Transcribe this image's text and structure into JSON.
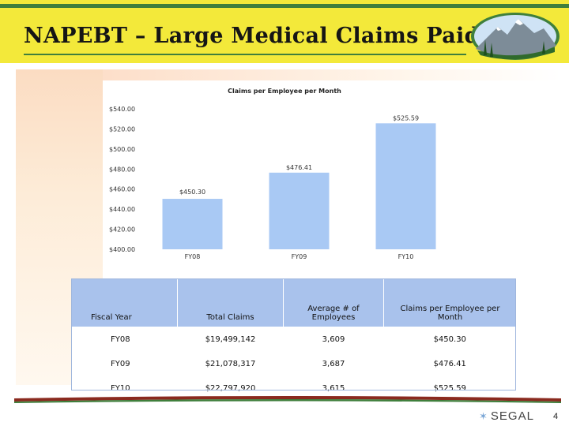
{
  "slide": {
    "title": "NAPEBT – Large Medical Claims Paid",
    "page_number": "4",
    "logo_text": "SEGAL",
    "colors": {
      "title_bar": "#f3e93a",
      "accent_green": "#3f7f3c",
      "bar_fill": "#a9c9f4",
      "table_header": "#a9c2ec"
    }
  },
  "chart_data": {
    "type": "bar",
    "title": "Claims per Employee per Month",
    "categories": [
      "FY08",
      "FY09",
      "FY10"
    ],
    "values": [
      450.3,
      476.41,
      525.59
    ],
    "data_labels": [
      "$450.30",
      "$476.41",
      "$525.59"
    ],
    "ylim": [
      400,
      540
    ],
    "yticks": [
      "$400.00",
      "$420.00",
      "$440.00",
      "$460.00",
      "$480.00",
      "$500.00",
      "$520.00",
      "$540.00"
    ],
    "xlabel": "",
    "ylabel": "",
    "grid": false
  },
  "table": {
    "headers": [
      "Fiscal Year",
      "Total Claims",
      "Average # of Employees",
      "Claims per Employee per Month"
    ],
    "rows": [
      [
        "FY08",
        "$19,499,142",
        "3,609",
        "$450.30"
      ],
      [
        "FY09",
        "$21,078,317",
        "3,687",
        "$476.41"
      ],
      [
        "FY10",
        "$22,797,920",
        "3,615",
        "$525.59"
      ]
    ]
  }
}
